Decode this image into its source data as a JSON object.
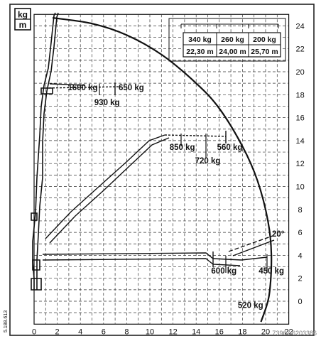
{
  "unit_box": {
    "top": "kg",
    "bottom": "m"
  },
  "x_ticks": [
    "0",
    "2",
    "4",
    "6",
    "8",
    "10",
    "12",
    "14",
    "16",
    "18",
    "20",
    "22"
  ],
  "y_ticks": [
    "0",
    "2",
    "4",
    "6",
    "8",
    "10",
    "12",
    "14",
    "16",
    "18",
    "20",
    "22",
    "24"
  ],
  "chart_data": {
    "type": "load diagram",
    "x_range": [
      0,
      22
    ],
    "y_range": [
      -2,
      25
    ],
    "grid": true,
    "envelope": [
      [
        1.6,
        24.7
      ],
      [
        5,
        24.2
      ],
      [
        8,
        23.2
      ],
      [
        11,
        21.5
      ],
      [
        14,
        19
      ],
      [
        16,
        16.8
      ],
      [
        18,
        13.5
      ],
      [
        19.3,
        10.5
      ],
      [
        20.2,
        7
      ],
      [
        20.5,
        4
      ],
      [
        20.3,
        0.5
      ],
      [
        19.6,
        -1.8
      ]
    ],
    "boom_angle": "20°",
    "load_table": {
      "loads": [
        "340 kg",
        "260 kg",
        "200 kg"
      ],
      "reaches": [
        "22,30 m",
        "24,00 m",
        "25,70 m"
      ]
    },
    "load_labels": [
      {
        "text": "1600 kg",
        "x": 4.2,
        "y": 18.4
      },
      {
        "text": "650 kg",
        "x": 8.4,
        "y": 18.4
      },
      {
        "text": "930 kg",
        "x": 6.3,
        "y": 17.1
      },
      {
        "text": "850 kg",
        "x": 12.8,
        "y": 13.2
      },
      {
        "text": "560 kg",
        "x": 16.9,
        "y": 13.2
      },
      {
        "text": "720 kg",
        "x": 15.0,
        "y": 12.0
      },
      {
        "text": "600 kg",
        "x": 16.4,
        "y": 2.4
      },
      {
        "text": "450 kg",
        "x": 20.5,
        "y": 2.4
      },
      {
        "text": "520 kg",
        "x": 18.7,
        "y": -0.6
      }
    ]
  },
  "side_code": "5.188.613",
  "watermark": "73967 6203386"
}
